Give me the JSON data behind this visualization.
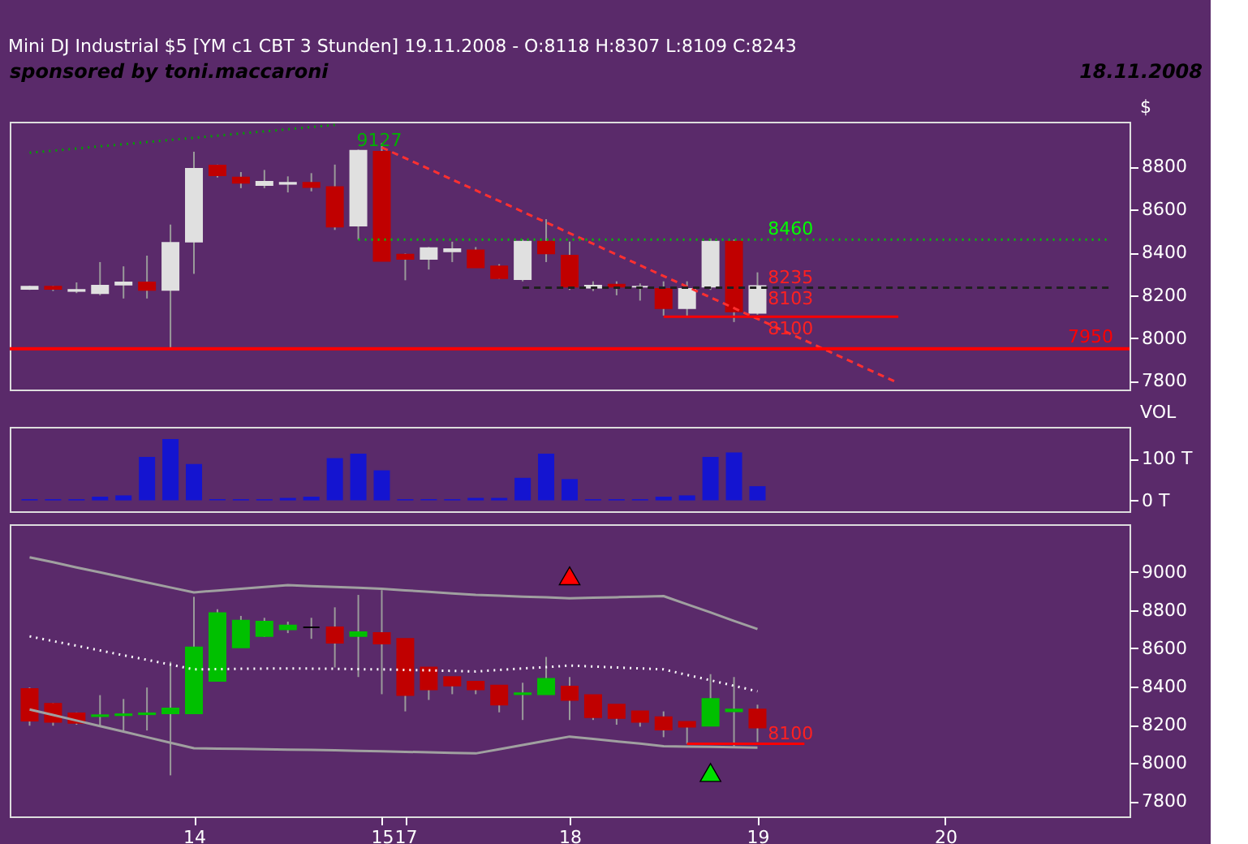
{
  "chart_data": [
    {
      "type": "candlestick",
      "title": "Mini DJ Industrial $5 [YM c1 CBT  3 Stunden] 19.11.2008 - O:8118 H:8307 L:8109 C:8243",
      "ylabel": "$",
      "categories": [
        null,
        null,
        null,
        null,
        null,
        null,
        null,
        null,
        null,
        null,
        null,
        null,
        null,
        null,
        null,
        null,
        null,
        null,
        null,
        null,
        null,
        null,
        null,
        null,
        null,
        null,
        null,
        null,
        null,
        null,
        null,
        null,
        null,
        null,
        null,
        null,
        null,
        null,
        null,
        null,
        null,
        null,
        null,
        null,
        null,
        null,
        null
      ],
      "ohlc": [
        [
          8230,
          8245,
          8225,
          8240
        ],
        [
          8240,
          8245,
          8220,
          8230
        ],
        [
          8220,
          8260,
          8210,
          8225
        ],
        [
          8210,
          8355,
          8200,
          8245
        ],
        [
          8250,
          8335,
          8185,
          8260
        ],
        [
          8260,
          8385,
          8185,
          8225
        ],
        [
          8225,
          8530,
          7950,
          8445
        ],
        [
          8450,
          8870,
          8300,
          8790
        ],
        [
          8805,
          8810,
          8750,
          8760
        ],
        [
          8750,
          8775,
          8700,
          8725
        ],
        [
          8715,
          8785,
          8700,
          8730
        ],
        [
          8720,
          8755,
          8680,
          8725
        ],
        [
          8725,
          8770,
          8685,
          8705
        ],
        [
          8705,
          8810,
          8505,
          8520
        ],
        [
          8525,
          8880,
          8460,
          8875
        ],
        [
          8870,
          8910,
          8360,
          8360
        ],
        [
          8390,
          8395,
          8270,
          8370
        ],
        [
          8370,
          8425,
          8320,
          8420
        ],
        [
          8405,
          8450,
          8355,
          8415
        ],
        [
          8410,
          8425,
          8330,
          8330
        ],
        [
          8335,
          8345,
          8275,
          8280
        ],
        [
          8275,
          8460,
          8265,
          8450
        ],
        [
          8450,
          8555,
          8355,
          8395
        ],
        [
          8385,
          8450,
          8225,
          8240
        ],
        [
          8235,
          8265,
          8220,
          8245
        ],
        [
          8250,
          8265,
          8200,
          8240
        ],
        [
          8240,
          8255,
          8175,
          8240
        ],
        [
          8230,
          8265,
          8105,
          8140
        ],
        [
          8140,
          8265,
          8100,
          8230
        ],
        [
          8240,
          8465,
          8225,
          8450
        ],
        [
          8450,
          8460,
          8075,
          8125
        ],
        [
          8118,
          8307,
          8109,
          8243
        ],
        null,
        null,
        null,
        null,
        null,
        null,
        null,
        null,
        null,
        null,
        null,
        null,
        null,
        null,
        null
      ],
      "colors": [
        "#e0e0e0",
        "#c00000",
        "#e0e0e0",
        "#e0e0e0",
        "#e0e0e0",
        "#c00000",
        "#e0e0e0",
        "#e0e0e0",
        "#c00000",
        "#c00000",
        "#e0e0e0",
        "#e0e0e0",
        "#c00000",
        "#c00000",
        "#e0e0e0",
        "#c00000",
        "#c00000",
        "#e0e0e0",
        "#e0e0e0",
        "#c00000",
        "#c00000",
        "#e0e0e0",
        "#c00000",
        "#c00000",
        "#e0e0e0",
        "#c00000",
        "#e0e0e0",
        "#c00000",
        "#e0e0e0",
        "#e0e0e0",
        "#c00000",
        "#e0e0e0",
        null,
        null,
        null,
        null,
        null,
        null,
        null,
        null,
        null,
        null,
        null,
        null,
        null,
        null,
        null
      ],
      "series": [
        {
          "type": "line",
          "color": "#ff3030",
          "line_style": "dashed",
          "values": [
            null,
            null,
            null,
            null,
            null,
            null,
            null,
            null,
            null,
            null,
            null,
            null,
            null,
            null,
            null,
            8890,
            8840,
            8790,
            8740,
            8690,
            8640,
            8590,
            8540,
            8490,
            8440,
            8390,
            8340,
            8290,
            8240,
            8190,
            8140,
            8090,
            8040,
            7990,
            7940,
            7890,
            7840,
            7790,
            null,
            null,
            null,
            null,
            null,
            null,
            null,
            null,
            null
          ]
        },
        {
          "type": "line",
          "color": "#00a000",
          "line_style": "dotted",
          "values": [
            8865,
            8875,
            8885,
            8895,
            8905,
            8915,
            8925,
            8935,
            8945,
            8955,
            8965,
            8975,
            8985,
            8995,
            null,
            null,
            null,
            null,
            null,
            null,
            null,
            null,
            null,
            null,
            null,
            null,
            null,
            null,
            null,
            null,
            null,
            null,
            null,
            null,
            null,
            null,
            null,
            null,
            null,
            null,
            null,
            null,
            null,
            null,
            null,
            null,
            null
          ]
        },
        {
          "type": "line",
          "color": "#00c000",
          "line_style": "dotted",
          "values": [
            null,
            null,
            null,
            null,
            null,
            null,
            null,
            null,
            null,
            null,
            null,
            null,
            null,
            null,
            8460,
            8460,
            8460,
            8460,
            8460,
            8460,
            8460,
            8460,
            8460,
            8460,
            8460,
            8460,
            8460,
            8460,
            8460,
            8460,
            8460,
            8460,
            8460,
            8460,
            8460,
            8460,
            8460,
            8460,
            8460,
            8460,
            8460,
            8460,
            8460,
            8460,
            8460,
            8460,
            8460
          ]
        },
        {
          "type": "line",
          "color": "#202020",
          "line_style": "dashed",
          "values": [
            null,
            null,
            null,
            null,
            null,
            null,
            null,
            null,
            null,
            null,
            null,
            null,
            null,
            null,
            null,
            null,
            null,
            null,
            null,
            null,
            null,
            8235,
            8235,
            8235,
            8235,
            8235,
            8235,
            8235,
            8235,
            8235,
            8235,
            8235,
            8235,
            8235,
            8235,
            8235,
            8235,
            8235,
            8235,
            8235,
            8235,
            8235,
            8235,
            8235,
            8235,
            8235,
            8235
          ]
        },
        {
          "type": "line",
          "color": "#ff0000",
          "line_style": "solid",
          "values": [
            null,
            null,
            null,
            null,
            null,
            null,
            null,
            null,
            null,
            null,
            null,
            null,
            null,
            null,
            null,
            null,
            null,
            null,
            null,
            null,
            null,
            null,
            null,
            null,
            null,
            null,
            null,
            8100,
            8100,
            8100,
            8100,
            8100,
            8100,
            8100,
            8100,
            8100,
            8100,
            8100,
            null,
            null,
            null,
            null,
            null,
            null,
            null,
            null,
            null
          ]
        }
      ],
      "ref_lines": [
        {
          "axis": "y",
          "value": 7950,
          "label": "7950",
          "color": "#ff0000",
          "line_style": "solid"
        }
      ],
      "annotations": [
        "sponsored by toni.maccaroni",
        "18.11.2008",
        "9127",
        {
          "text": "8460",
          "y": 8460
        },
        {
          "text": "8235",
          "y": 8235
        },
        "8103",
        {
          "text": "8100",
          "y": 8100
        }
      ],
      "ylim": [
        7760,
        9010
      ],
      "yticks": [
        7800,
        8000,
        8200,
        8400,
        8600,
        8800
      ],
      "tick_labels": "y",
      "grid": false
    },
    {
      "type": "bar",
      "ylabel": "VOL",
      "categories": [
        null,
        null,
        null,
        null,
        null,
        null,
        null,
        null,
        null,
        null,
        null,
        null,
        null,
        null,
        null,
        null,
        null,
        null,
        null,
        null,
        null,
        null,
        null,
        null,
        null,
        null,
        null,
        null,
        null,
        null,
        null,
        null,
        null,
        null,
        null,
        null,
        null,
        null,
        null,
        null,
        null,
        null,
        null,
        null,
        null,
        null,
        null
      ],
      "values": [
        3,
        3,
        3,
        9,
        12,
        104,
        147,
        87,
        3,
        3,
        3,
        6,
        9,
        101,
        112,
        72,
        3,
        3,
        3,
        6,
        6,
        54,
        112,
        51,
        3,
        3,
        3,
        9,
        12,
        104,
        115,
        34,
        null,
        null,
        null,
        null,
        null,
        null,
        null,
        null,
        null,
        null,
        null,
        null,
        null,
        null,
        null
      ],
      "color": "#1414d0",
      "ylim": [
        -26,
        176
      ],
      "yticks": [
        {
          "value": 0,
          "label": "0 T"
        },
        {
          "value": 100,
          "label": "100 T"
        }
      ],
      "tick_labels": "y",
      "grid": false
    },
    {
      "type": "candlestick",
      "categories": [
        null,
        null,
        null,
        null,
        null,
        null,
        null,
        "14",
        null,
        null,
        null,
        null,
        null,
        null,
        null,
        "15",
        "17",
        null,
        null,
        null,
        null,
        null,
        null,
        "18",
        null,
        null,
        null,
        null,
        null,
        null,
        null,
        "19",
        null,
        null,
        null,
        null,
        null,
        null,
        null,
        "20",
        null,
        null,
        null,
        null,
        null,
        null,
        null
      ],
      "ohlc": [
        [
          8387,
          8395,
          8195,
          8222
        ],
        [
          8310,
          8315,
          8195,
          8215
        ],
        [
          8260,
          8265,
          8200,
          8210
        ],
        [
          8245,
          8355,
          8195,
          8250
        ],
        [
          8250,
          8335,
          8170,
          8255
        ],
        [
          8255,
          8395,
          8170,
          8260
        ],
        [
          8260,
          8530,
          7935,
          8285
        ],
        [
          8260,
          8870,
          8260,
          8605
        ],
        [
          8430,
          8805,
          8430,
          8785
        ],
        [
          8605,
          8770,
          8605,
          8745
        ],
        [
          8665,
          8760,
          8660,
          8740
        ],
        [
          8700,
          8740,
          8680,
          8720
        ],
        [
          8710,
          8760,
          8650,
          8710
        ],
        [
          8710,
          8815,
          8500,
          8630
        ],
        [
          8665,
          8880,
          8450,
          8685
        ],
        [
          8680,
          8905,
          8360,
          8625
        ],
        [
          8650,
          8650,
          8270,
          8355
        ],
        [
          8500,
          8500,
          8330,
          8385
        ],
        [
          8450,
          8450,
          8360,
          8405
        ],
        [
          8425,
          8425,
          8360,
          8385
        ],
        [
          8405,
          8405,
          8265,
          8305
        ],
        [
          8360,
          8420,
          8225,
          8365
        ],
        [
          8360,
          8555,
          8360,
          8440
        ],
        [
          8400,
          8450,
          8225,
          8330
        ],
        [
          8355,
          8355,
          8225,
          8240
        ],
        [
          8305,
          8305,
          8200,
          8235
        ],
        [
          8270,
          8270,
          8190,
          8215
        ],
        [
          8240,
          8270,
          8135,
          8175
        ],
        [
          8215,
          8215,
          8100,
          8190
        ],
        [
          8195,
          8465,
          8195,
          8335
        ],
        [
          8270,
          8450,
          8080,
          8280
        ],
        [
          8280,
          8305,
          8110,
          8185
        ],
        null,
        null,
        null,
        null,
        null,
        null,
        null,
        null,
        null,
        null,
        null,
        null,
        null,
        null,
        null
      ],
      "colors": [
        "#c00000",
        "#c00000",
        "#c00000",
        "#00c000",
        "#00c000",
        "#00c000",
        "#00c000",
        "#00c000",
        "#00c000",
        "#00c000",
        "#00c000",
        "#00c000",
        "#000000",
        "#c00000",
        "#00c000",
        "#c00000",
        "#c00000",
        "#c00000",
        "#c00000",
        "#c00000",
        "#c00000",
        "#00c000",
        "#00c000",
        "#c00000",
        "#c00000",
        "#c00000",
        "#c00000",
        "#c00000",
        "#c00000",
        "#00c000",
        "#00c000",
        "#c00000",
        null,
        null,
        null,
        null,
        null,
        null,
        null,
        null,
        null,
        null,
        null,
        null,
        null,
        null,
        null
      ],
      "series": [
        {
          "type": "line",
          "color": "#a0a0a0",
          "line_style": "solid",
          "values": [
            9077,
            9051,
            9024,
            8998,
            8972,
            8945,
            8919,
            8893,
            8903,
            8912,
            8922,
            8931,
            8926,
            8922,
            8917,
            8912,
            8904,
            8896,
            8888,
            8880,
            8876,
            8871,
            8867,
            8862,
            8865,
            8868,
            8871,
            8874,
            8831,
            8788,
            8744,
            8701,
            null,
            null,
            null,
            null,
            null,
            null,
            null,
            null,
            null,
            null,
            null,
            null,
            null,
            null,
            null
          ]
        },
        {
          "type": "line",
          "color": "#ffffff",
          "line_style": "dotted",
          "values": [
            8663,
            8638,
            8614,
            8589,
            8564,
            8540,
            8515,
            8490,
            8491,
            8493,
            8494,
            8495,
            8494,
            8493,
            8491,
            8490,
            8487,
            8485,
            8482,
            8479,
            8487,
            8495,
            8502,
            8510,
            8505,
            8500,
            8495,
            8490,
            8461,
            8433,
            8404,
            8375,
            null,
            null,
            null,
            null,
            null,
            null,
            null,
            null,
            null,
            null,
            null,
            null,
            null,
            null,
            null
          ]
        },
        {
          "type": "line",
          "color": "#a0a0a0",
          "line_style": "solid",
          "values": [
            8280,
            8251,
            8222,
            8193,
            8164,
            8135,
            8106,
            8077,
            8075,
            8074,
            8072,
            8070,
            8068,
            8066,
            8063,
            8061,
            8058,
            8056,
            8053,
            8050,
            8072,
            8094,
            8116,
            8138,
            8126,
            8113,
            8101,
            8088,
            8086,
            8084,
            8082,
            8080,
            null,
            null,
            null,
            null,
            null,
            null,
            null,
            null,
            null,
            null,
            null,
            null,
            null,
            null,
            null
          ]
        },
        {
          "type": "line",
          "color": "#ff0000",
          "line_style": "solid",
          "values": [
            null,
            null,
            null,
            null,
            null,
            null,
            null,
            null,
            null,
            null,
            null,
            null,
            null,
            null,
            null,
            null,
            null,
            null,
            null,
            null,
            null,
            null,
            null,
            null,
            null,
            null,
            null,
            null,
            8100,
            8100,
            8100,
            8100,
            8100,
            8100,
            null,
            null,
            null,
            null,
            null,
            null,
            null,
            null,
            null,
            null,
            null,
            null,
            null
          ]
        },
        {
          "type": "scatter",
          "color": "#ff0000",
          "marker": "triangle",
          "values": [
            null,
            null,
            null,
            null,
            null,
            null,
            null,
            null,
            null,
            null,
            null,
            null,
            null,
            null,
            null,
            null,
            null,
            null,
            null,
            null,
            null,
            null,
            null,
            8980,
            null,
            null,
            null,
            null,
            null,
            null,
            null,
            null,
            null,
            null,
            null,
            null,
            null,
            null,
            null,
            null,
            null,
            null,
            null,
            null,
            null,
            null,
            null
          ]
        },
        {
          "type": "scatter",
          "color": "#00e000",
          "marker": "triangle",
          "values": [
            null,
            null,
            null,
            null,
            null,
            null,
            null,
            null,
            null,
            null,
            null,
            null,
            null,
            null,
            null,
            null,
            null,
            null,
            null,
            null,
            null,
            null,
            null,
            null,
            null,
            null,
            null,
            null,
            null,
            7950,
            null,
            null,
            null,
            null,
            null,
            null,
            null,
            null,
            null,
            null,
            null,
            null,
            null,
            null,
            null,
            null,
            null
          ]
        }
      ],
      "annotations": [
        {
          "text": "8100",
          "y": 8100
        }
      ],
      "ylim": [
        7720,
        9250
      ],
      "yticks": [
        7800,
        8000,
        8200,
        8400,
        8600,
        8800,
        9000
      ],
      "grid": false
    }
  ]
}
